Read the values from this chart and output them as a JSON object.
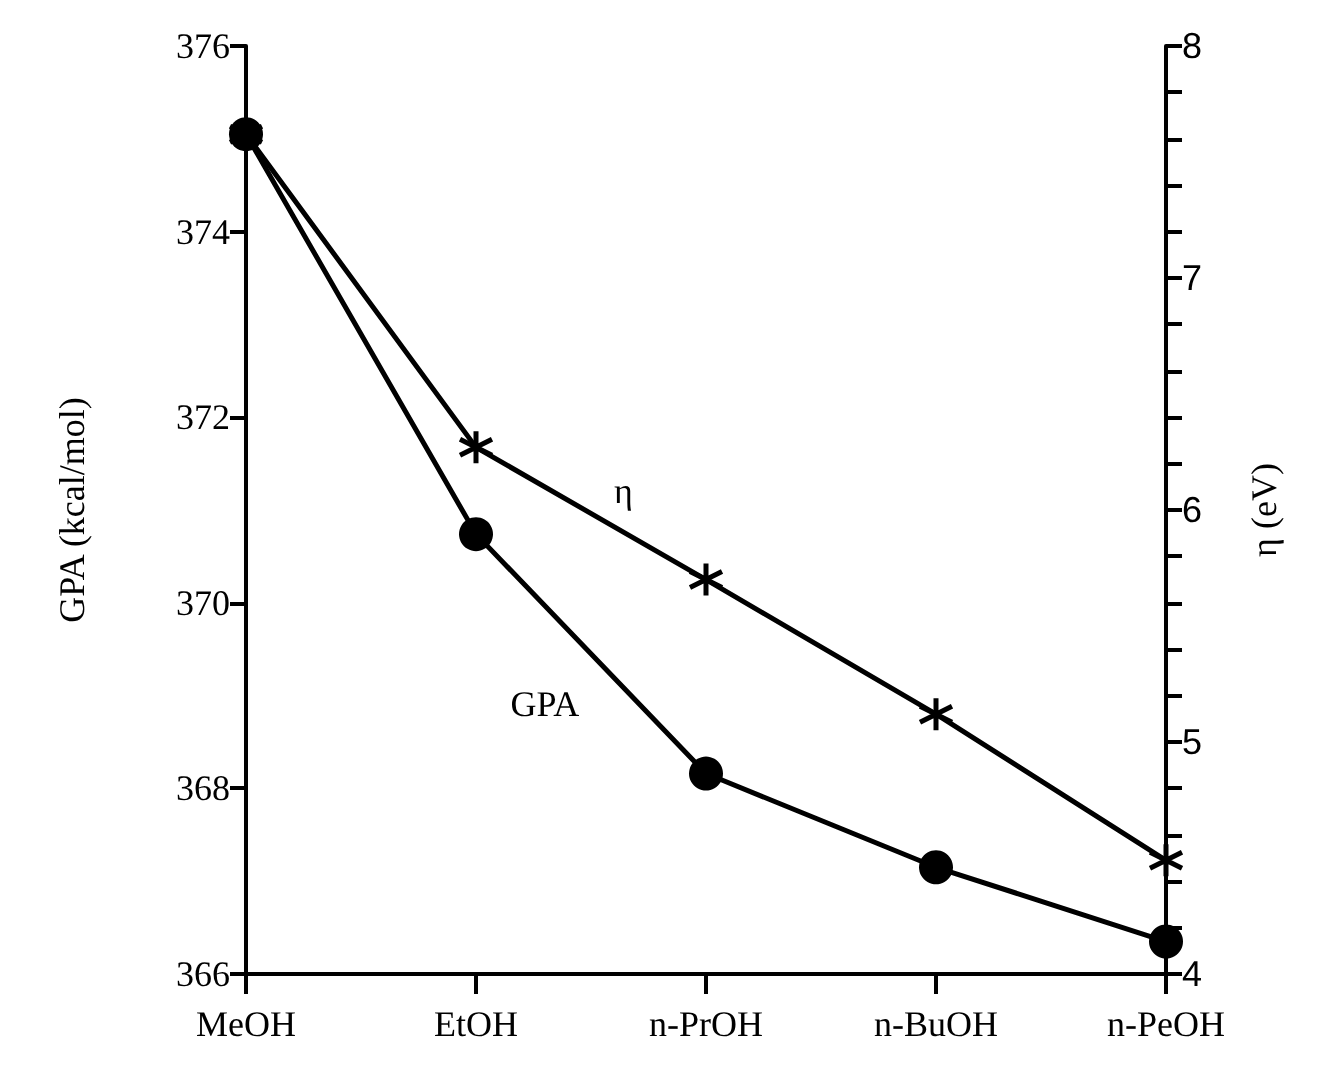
{
  "chart_data": {
    "type": "line",
    "xlabel": null,
    "ylabel": "GPA (kcal/mol)",
    "y2label": "η (eV)",
    "categories": [
      "MeOH",
      "EtOH",
      "n-PrOH",
      "n-BuOH",
      "n-PeOH"
    ],
    "series": [
      {
        "color": "#000000",
        "marker": "circle",
        "values": [
          375.05,
          370.74,
          368.16,
          367.15,
          366.35
        ]
      },
      {
        "color": "#000000",
        "marker": "cross",
        "axis": "y2",
        "values": [
          7.62,
          6.27,
          5.7,
          5.12,
          4.49
        ]
      }
    ],
    "ylim": [
      366,
      376
    ],
    "yticks": [
      366,
      368,
      370,
      372,
      374,
      376
    ],
    "y2lim": [
      4,
      8
    ],
    "y2ticks": [
      4,
      {
        "value": 4.2,
        "label": null
      },
      {
        "value": 4.4,
        "label": null
      },
      {
        "value": 4.6,
        "label": null
      },
      {
        "value": 4.8,
        "label": null
      },
      5,
      {
        "value": 5.2,
        "label": null
      },
      {
        "value": 5.4,
        "label": null
      },
      {
        "value": 5.6,
        "label": null
      },
      {
        "value": 5.8,
        "label": null
      },
      6,
      {
        "value": 6.2,
        "label": null
      },
      {
        "value": 6.4,
        "label": null
      },
      {
        "value": 6.6,
        "label": null
      },
      {
        "value": 6.8,
        "label": null
      },
      7,
      {
        "value": 7.2,
        "label": null
      },
      {
        "value": 7.4,
        "label": null
      },
      {
        "value": 7.6,
        "label": null
      },
      {
        "value": 7.8,
        "label": null
      },
      8
    ],
    "annotations": [
      "η",
      "GPA"
    ],
    "grid": false,
    "line_style": "solid"
  }
}
